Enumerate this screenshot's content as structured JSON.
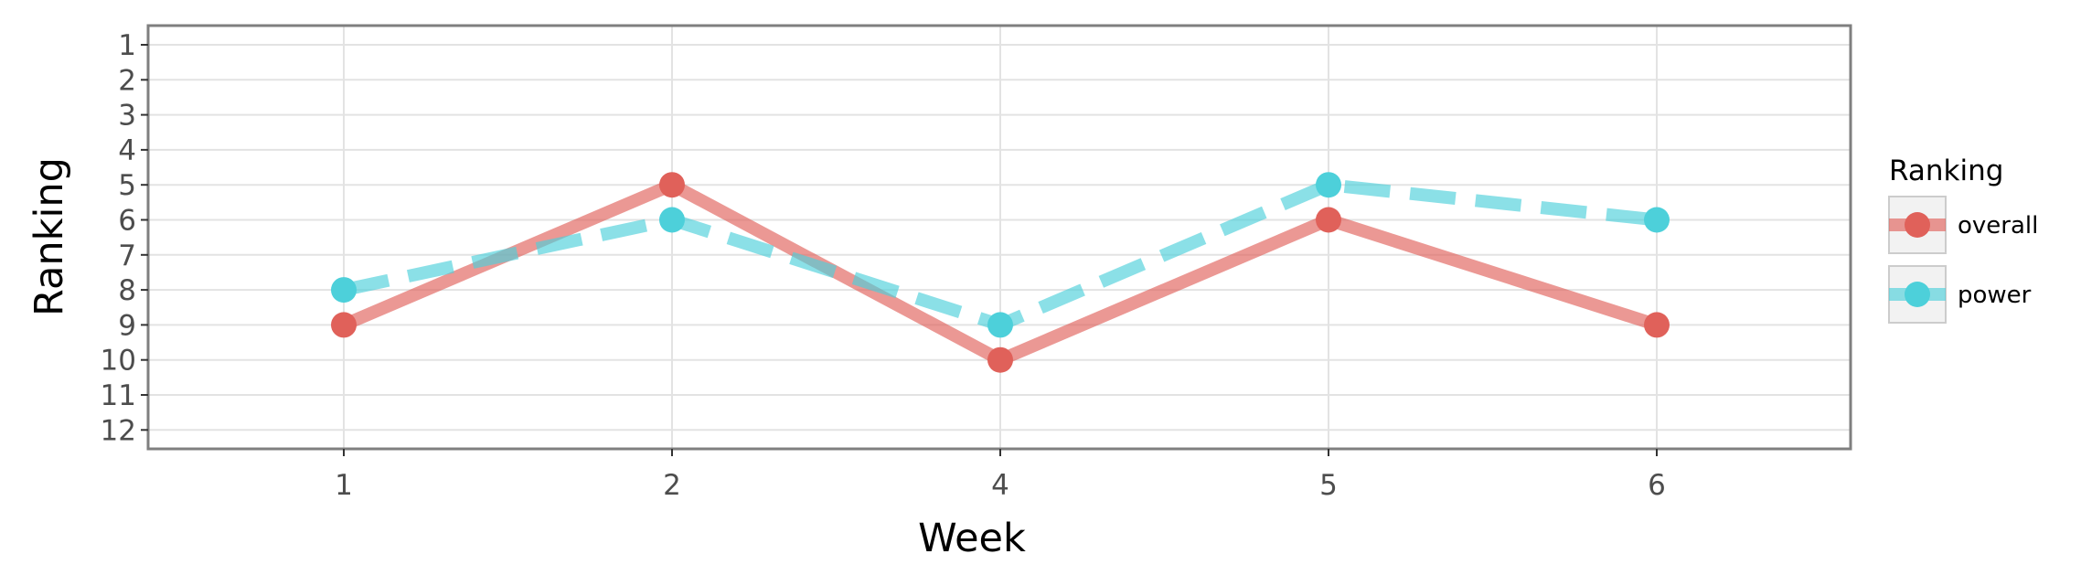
{
  "chart_data": {
    "type": "line",
    "xlabel": "Week",
    "ylabel": "Ranking",
    "categories": [
      "1",
      "2",
      "4",
      "5",
      "6"
    ],
    "y_ticks": [
      "1",
      "2",
      "3",
      "4",
      "5",
      "6",
      "7",
      "8",
      "9",
      "10",
      "11",
      "12"
    ],
    "ylim": [
      1,
      12
    ],
    "y_reversed": true,
    "grid": true,
    "legend": {
      "title": "Ranking",
      "position": "right"
    },
    "series": [
      {
        "name": "overall",
        "values": [
          9,
          5,
          10,
          6,
          9
        ],
        "color": "#E0615A",
        "line_style": "solid"
      },
      {
        "name": "power",
        "values": [
          8,
          6,
          9,
          5,
          6
        ],
        "color": "#4DD0DA",
        "line_style": "dashed"
      }
    ]
  }
}
